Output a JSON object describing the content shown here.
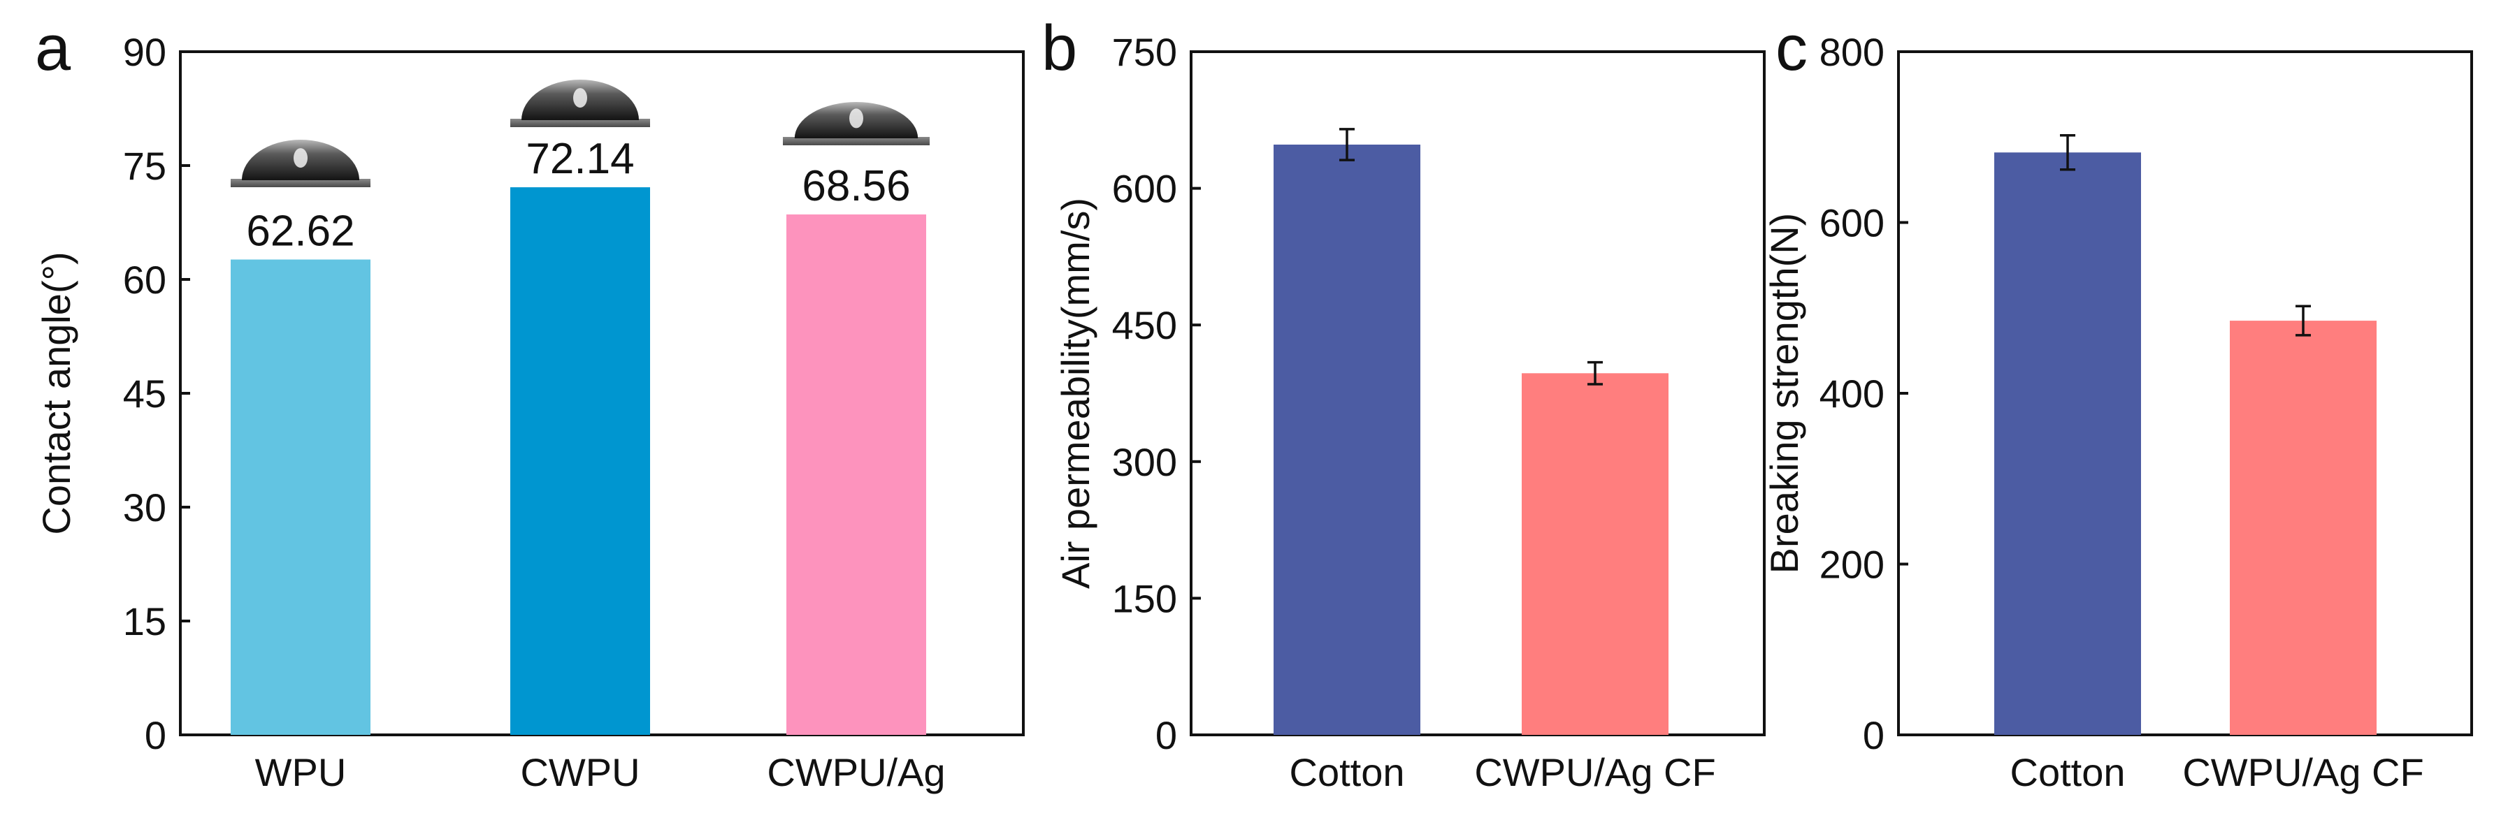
{
  "figure": {
    "panels": [
      "a",
      "b",
      "c"
    ]
  },
  "chart_data": [
    {
      "panel": "a",
      "type": "bar",
      "title": "",
      "xlabel": "",
      "ylabel": "Contact angle(°)",
      "ylim": [
        0,
        90
      ],
      "yticks": [
        0,
        15,
        30,
        45,
        60,
        75,
        90
      ],
      "categories": [
        "WPU",
        "CWPU",
        "CWPU/Ag"
      ],
      "values": [
        62.62,
        72.14,
        68.56
      ],
      "data_labels": [
        "62.62",
        "72.14",
        "68.56"
      ],
      "colors": [
        "#62c4e2",
        "#0096d0",
        "#fd93bd"
      ],
      "annotations": [
        "water droplet photo above each bar"
      ]
    },
    {
      "panel": "b",
      "type": "bar",
      "title": "",
      "xlabel": "",
      "ylabel": "Air permeability(mm/s)",
      "ylim": [
        0,
        750
      ],
      "yticks": [
        0,
        150,
        300,
        450,
        600,
        750
      ],
      "categories": [
        "Cotton",
        "CWPU/Ag CF"
      ],
      "values": [
        648,
        397
      ],
      "errors": [
        17,
        12
      ],
      "colors": [
        "#4c5ca3",
        "#ff7e7e"
      ]
    },
    {
      "panel": "c",
      "type": "bar",
      "title": "",
      "xlabel": "",
      "ylabel": "Breaking strength(N)",
      "ylim": [
        0,
        800
      ],
      "yticks": [
        0,
        200,
        400,
        600,
        800
      ],
      "categories": [
        "Cotton",
        "CWPU/Ag CF"
      ],
      "values": [
        682,
        485
      ],
      "errors": [
        20,
        17
      ],
      "colors": [
        "#4c5ca3",
        "#ff7e7e"
      ]
    }
  ]
}
